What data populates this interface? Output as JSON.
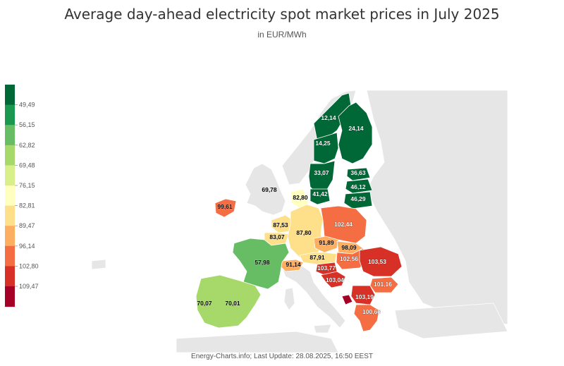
{
  "title": "Average day-ahead electricity spot market prices in July 2025",
  "subtitle": "in EUR/MWh",
  "footer": "Energy-Charts.info; Last Update: 28.08.2025, 16:50 EEST",
  "legend": {
    "thresholds": [
      "49,49",
      "56,15",
      "62,82",
      "69,48",
      "76,15",
      "82,81",
      "89,47",
      "96,14",
      "102,80",
      "109,47"
    ],
    "colors": [
      "#006837",
      "#1a9850",
      "#66bd63",
      "#a6d96a",
      "#d9ef8b",
      "#ffffbf",
      "#fee08b",
      "#fdae61",
      "#f46d43",
      "#d73027",
      "#a50026"
    ]
  },
  "colors": {
    "no_data": "#e6e6e6",
    "border": "#ffffff"
  },
  "regions": [
    {
      "id": "norway",
      "value": null,
      "name": "Norway"
    },
    {
      "id": "sweden",
      "value": null,
      "name": "Sweden"
    },
    {
      "id": "finland",
      "value": "24,14",
      "name": "Finland"
    },
    {
      "id": "ireland",
      "value": "99,61",
      "name": "Ireland"
    },
    {
      "id": "gb",
      "value": null,
      "name": "Great Britain"
    },
    {
      "id": "france",
      "value": "57,98",
      "name": "France"
    },
    {
      "id": "iberia",
      "value": null,
      "name": "Iberian Peninsula"
    },
    {
      "id": "benelux-nl",
      "value": "87,53",
      "name": "Netherlands"
    },
    {
      "id": "benelux-be",
      "value": "83,07",
      "name": "Belgium"
    },
    {
      "id": "germany",
      "value": "87,80",
      "name": "Germany"
    },
    {
      "id": "denmark",
      "value": "82,80",
      "name": "Denmark"
    },
    {
      "id": "poland",
      "value": "102,44",
      "name": "Poland"
    },
    {
      "id": "czechia",
      "value": "91,89",
      "name": "Czechia"
    },
    {
      "id": "slovakia",
      "value": "98,09",
      "name": "Slovakia"
    },
    {
      "id": "austria",
      "value": "87,91",
      "name": "Austria"
    },
    {
      "id": "hungary",
      "value": "102,56",
      "name": "Hungary"
    },
    {
      "id": "switzerland",
      "value": "91,14",
      "name": "Switzerland"
    },
    {
      "id": "slovenia",
      "value": "103,77",
      "name": "Slovenia"
    },
    {
      "id": "croatia",
      "value": "103,04",
      "name": "Croatia"
    },
    {
      "id": "romania",
      "value": "103,53",
      "name": "Romania"
    },
    {
      "id": "bulgaria",
      "value": "101,16",
      "name": "Bulgaria"
    },
    {
      "id": "serbia-mk",
      "value": "103,19",
      "name": "North Macedonia / Serbia"
    },
    {
      "id": "greece",
      "value": "100,60",
      "name": "Greece"
    },
    {
      "id": "montenegro",
      "value": null,
      "name": "Montenegro"
    },
    {
      "id": "estonia",
      "value": "36,63",
      "name": "Estonia"
    },
    {
      "id": "latvia",
      "value": "46,12",
      "name": "Latvia"
    },
    {
      "id": "lithuania",
      "value": "46,29",
      "name": "Lithuania"
    },
    {
      "id": "italy",
      "value": null,
      "name": "Italy"
    },
    {
      "id": "eastern",
      "value": null,
      "name": "Eastern Europe"
    }
  ],
  "labels": [
    {
      "text": "12,14",
      "region": "norway-n"
    },
    {
      "text": "24,14",
      "region": "finland"
    },
    {
      "text": "14,25",
      "region": "sweden-mid"
    },
    {
      "text": "33,07",
      "region": "sweden-s"
    },
    {
      "text": "36,63",
      "region": "estonia"
    },
    {
      "text": "46,12",
      "region": "latvia"
    },
    {
      "text": "46,29",
      "region": "lithuania"
    },
    {
      "text": "41,42",
      "region": "sweden-se"
    },
    {
      "text": "82,80",
      "region": "denmark"
    },
    {
      "text": "69,78",
      "region": "gb"
    },
    {
      "text": "99,61",
      "region": "ireland"
    },
    {
      "text": "87,53",
      "region": "netherlands"
    },
    {
      "text": "83,07",
      "region": "belgium"
    },
    {
      "text": "87,80",
      "region": "germany"
    },
    {
      "text": "102,44",
      "region": "poland"
    },
    {
      "text": "91,89",
      "region": "czechia"
    },
    {
      "text": "98,09",
      "region": "slovakia"
    },
    {
      "text": "57,98",
      "region": "france"
    },
    {
      "text": "87,91",
      "region": "austria"
    },
    {
      "text": "102,56",
      "region": "hungary"
    },
    {
      "text": "91,14",
      "region": "switzerland"
    },
    {
      "text": "103,77",
      "region": "slovenia"
    },
    {
      "text": "103,53",
      "region": "romania"
    },
    {
      "text": "103,04",
      "region": "croatia"
    },
    {
      "text": "101,16",
      "region": "bulgaria"
    },
    {
      "text": "103,19",
      "region": "serbia-mk"
    },
    {
      "text": "100,60",
      "region": "greece"
    },
    {
      "text": "70,07",
      "region": "portugal"
    },
    {
      "text": "70,01",
      "region": "spain"
    }
  ]
}
